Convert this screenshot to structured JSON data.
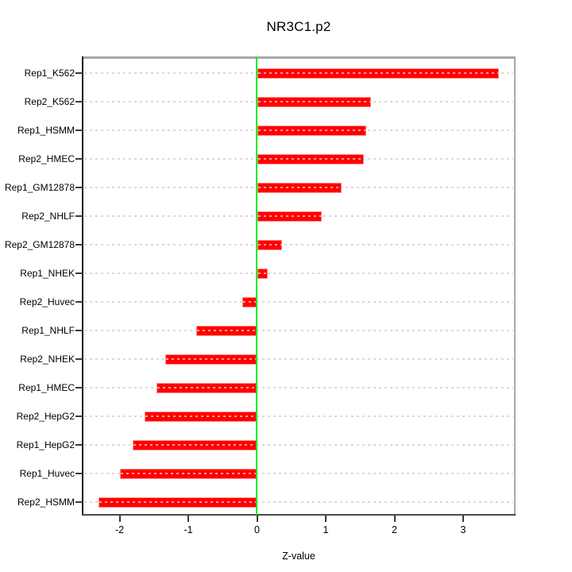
{
  "figure": {
    "title": "NR3C1.p2",
    "xlabel": "Z-value"
  },
  "chart_data": {
    "type": "bar",
    "orientation": "horizontal",
    "title": "NR3C1.p2",
    "xlabel": "Z-value",
    "ylabel": "",
    "categories": [
      "Rep1_K562",
      "Rep2_K562",
      "Rep1_HSMM",
      "Rep2_HMEC",
      "Rep1_GM12878",
      "Rep2_NHLF",
      "Rep2_GM12878",
      "Rep1_NHEK",
      "Rep2_Huvec",
      "Rep1_NHLF",
      "Rep2_NHEK",
      "Rep1_HMEC",
      "Rep2_HepG2",
      "Rep1_HepG2",
      "Rep1_Huvec",
      "Rep2_HSMM"
    ],
    "values": [
      3.52,
      1.66,
      1.59,
      1.56,
      1.23,
      0.94,
      0.36,
      0.16,
      -0.22,
      -0.88,
      -1.34,
      -1.46,
      -1.64,
      -1.81,
      -2.0,
      -2.31
    ],
    "x_ticks": [
      "-2",
      "-1",
      "0",
      "1",
      "2",
      "3"
    ],
    "x_tick_values": [
      -2,
      -1,
      0,
      1,
      2,
      3
    ],
    "xlim": [
      -2.54,
      3.75
    ],
    "bar_color": "#ff0000",
    "bar_border_color": "#ff8f8f",
    "zero_line_color": "#00ee00",
    "gridline_color": "#d9d9d9",
    "grid": "dashed horizontal line per category",
    "legend": "none"
  }
}
